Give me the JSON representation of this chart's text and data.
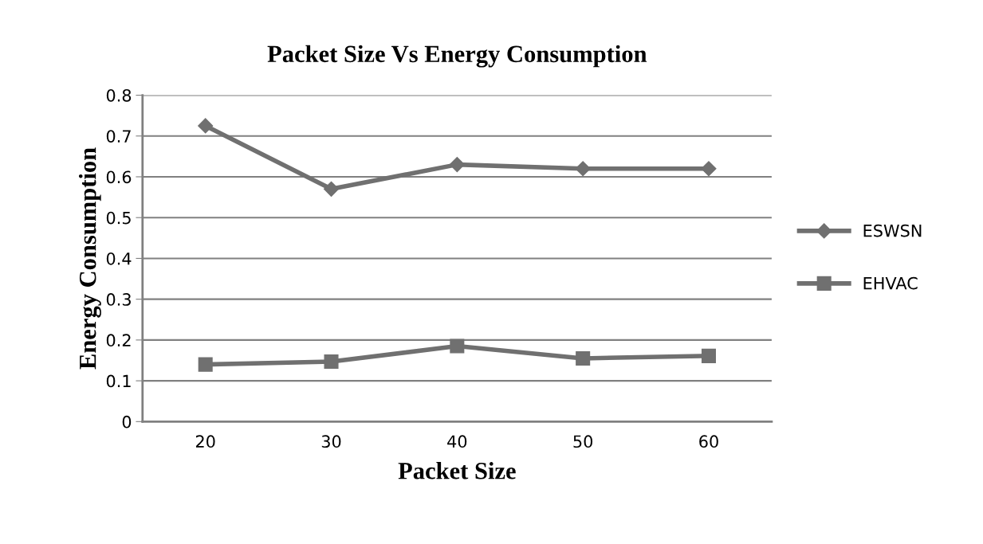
{
  "chart_data": {
    "type": "line",
    "title": "Packet Size Vs Energy Consumption",
    "xlabel": "Packet Size",
    "ylabel": "Energy Consumption",
    "categories": [
      "20",
      "30",
      "40",
      "50",
      "60"
    ],
    "series": [
      {
        "name": "ESWSN",
        "color": "#707070",
        "marker": "diamond",
        "values": [
          0.725,
          0.57,
          0.63,
          0.62,
          0.62
        ]
      },
      {
        "name": "EHVAC",
        "color": "#707070",
        "marker": "square",
        "values": [
          0.14,
          0.147,
          0.185,
          0.155,
          0.161
        ]
      }
    ],
    "ylim": [
      0,
      0.8
    ],
    "yticks": [
      0,
      0.1,
      0.2,
      0.3,
      0.4,
      0.5,
      0.6,
      0.7,
      0.8
    ],
    "grid": "y",
    "legend": "right"
  }
}
